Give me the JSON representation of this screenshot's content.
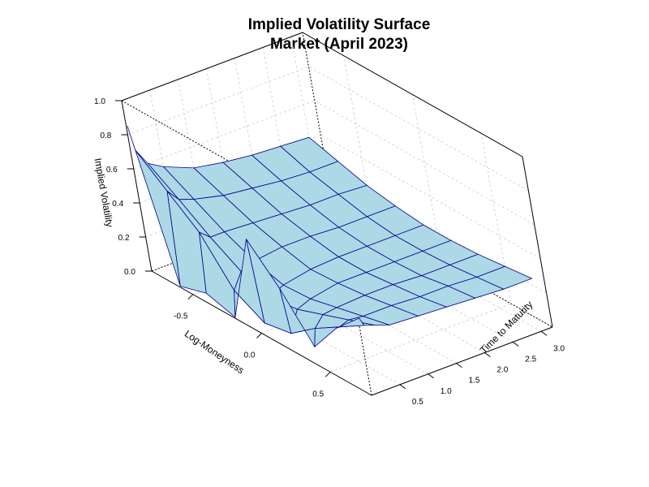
{
  "chart_data": {
    "type": "surface3d",
    "title": "Implied Volatility Surface",
    "subtitle": "Market (April 2023)",
    "xlabel": "Log-Moneyness",
    "ylabel": "Time to Maturity",
    "zlabel": "Implied Volatility",
    "xlim": [
      -0.8,
      0.8
    ],
    "ylim": [
      0,
      3.2
    ],
    "zlim": [
      0,
      1.0
    ],
    "x_ticks": [
      "-0.5",
      "0.0",
      "0.5"
    ],
    "y_ticks": [
      "0.5",
      "1.0",
      "1.5",
      "2.0",
      "2.5",
      "3.0"
    ],
    "z_ticks": [
      "0.0",
      "0.2",
      "0.4",
      "0.6",
      "0.8",
      "1.0"
    ],
    "x_tick_values": [
      -0.5,
      0.0,
      0.5
    ],
    "y_tick_values": [
      0.5,
      1.0,
      1.5,
      2.0,
      2.5,
      3.0
    ],
    "z_tick_values": [
      0.0,
      0.2,
      0.4,
      0.6,
      0.8,
      1.0
    ],
    "grid": true,
    "surface_fill": "#add8e6",
    "surface_edge": "#00008b",
    "x": [
      -0.8,
      -0.6,
      -0.4,
      -0.2,
      0.0,
      0.2,
      0.4,
      0.6,
      0.8
    ],
    "y": [
      0.02,
      0.08,
      0.25,
      0.5,
      1.0,
      1.5,
      2.0,
      2.5,
      3.0
    ],
    "z": [
      [
        0.85,
        0.0,
        0.05,
        0.0,
        0.55,
        0.35,
        0.1,
        0.3,
        0.45
      ],
      [
        0.7,
        0.55,
        0.4,
        0.15,
        0.05,
        0.08,
        0.2,
        0.3,
        0.4
      ],
      [
        0.6,
        0.48,
        0.35,
        0.24,
        0.18,
        0.2,
        0.26,
        0.32,
        0.38
      ],
      [
        0.55,
        0.45,
        0.35,
        0.27,
        0.22,
        0.23,
        0.27,
        0.31,
        0.35
      ],
      [
        0.48,
        0.41,
        0.34,
        0.29,
        0.25,
        0.26,
        0.28,
        0.31,
        0.34
      ],
      [
        0.45,
        0.39,
        0.33,
        0.29,
        0.26,
        0.26,
        0.28,
        0.3,
        0.33
      ],
      [
        0.43,
        0.37,
        0.32,
        0.28,
        0.26,
        0.26,
        0.27,
        0.3,
        0.32
      ],
      [
        0.42,
        0.36,
        0.32,
        0.28,
        0.26,
        0.26,
        0.27,
        0.29,
        0.31
      ],
      [
        0.41,
        0.36,
        0.31,
        0.28,
        0.26,
        0.26,
        0.27,
        0.29,
        0.31
      ]
    ]
  }
}
